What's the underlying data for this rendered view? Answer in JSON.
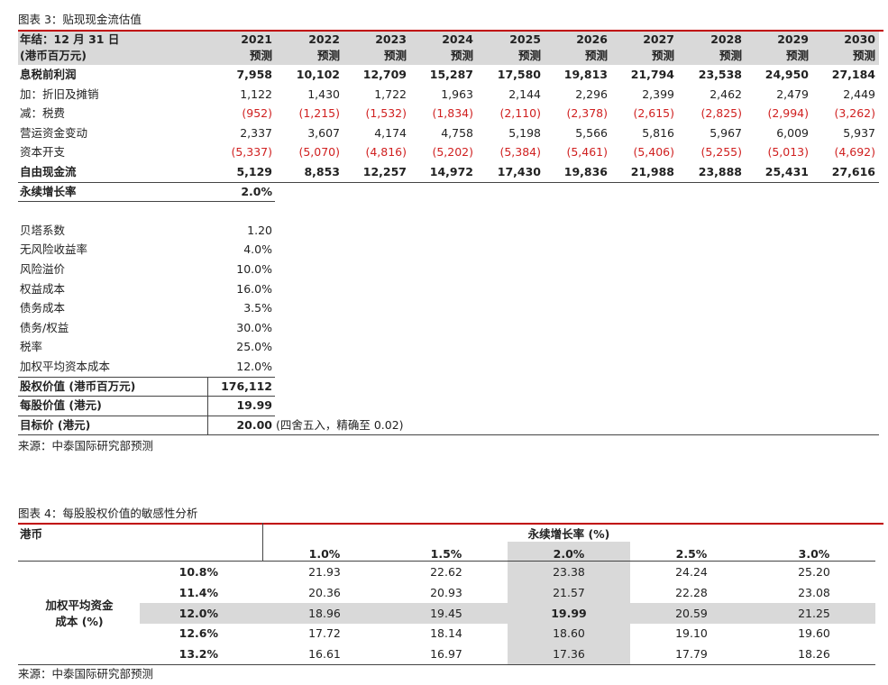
{
  "table1": {
    "title": "图表 3：贴现现金流估值",
    "header": {
      "label": [
        "年结：12 月 31 日",
        "(港币百万元)"
      ],
      "years": [
        "2021",
        "2022",
        "2023",
        "2024",
        "2025",
        "2026",
        "2027",
        "2028",
        "2029",
        "2030"
      ],
      "sublabel": "预测"
    },
    "rows": [
      {
        "label": "息税前利润",
        "bold": true,
        "values": [
          "7,958",
          "10,102",
          "12,709",
          "15,287",
          "17,580",
          "19,813",
          "21,794",
          "23,538",
          "24,950",
          "27,184"
        ]
      },
      {
        "label": "加：折旧及摊销",
        "values": [
          "1,122",
          "1,430",
          "1,722",
          "1,963",
          "2,144",
          "2,296",
          "2,399",
          "2,462",
          "2,479",
          "2,449"
        ]
      },
      {
        "label": "减：税费",
        "color": "#d02020",
        "values": [
          "(952)",
          "(1,215)",
          "(1,532)",
          "(1,834)",
          "(2,110)",
          "(2,378)",
          "(2,615)",
          "(2,825)",
          "(2,994)",
          "(3,262)"
        ]
      },
      {
        "label": "营运资金变动",
        "values": [
          "2,337",
          "3,607",
          "4,174",
          "4,758",
          "5,198",
          "5,566",
          "5,816",
          "5,967",
          "6,009",
          "5,937"
        ]
      },
      {
        "label": "资本开支",
        "color": "#d02020",
        "values": [
          "(5,337)",
          "(5,070)",
          "(4,816)",
          "(5,202)",
          "(5,384)",
          "(5,461)",
          "(5,406)",
          "(5,255)",
          "(5,013)",
          "(4,692)"
        ]
      },
      {
        "label": "自由现金流",
        "bold": true,
        "values": [
          "5,129",
          "8,853",
          "12,257",
          "14,972",
          "17,430",
          "19,836",
          "21,988",
          "23,888",
          "25,431",
          "27,616"
        ]
      },
      {
        "label": "永续增长率",
        "bold": true,
        "values": [
          "2.0%"
        ]
      }
    ],
    "assumptions": [
      {
        "label": "贝塔系数",
        "values": [
          "1.20"
        ]
      },
      {
        "label": "无风险收益率",
        "values": [
          "4.0%"
        ]
      },
      {
        "label": "风险溢价",
        "values": [
          "10.0%"
        ]
      },
      {
        "label": "权益成本",
        "values": [
          "16.0%"
        ]
      },
      {
        "label": "债务成本",
        "values": [
          "3.5%"
        ]
      },
      {
        "label": "债务/权益",
        "values": [
          "30.0%"
        ]
      },
      {
        "label": "税率",
        "values": [
          "25.0%"
        ]
      },
      {
        "label": "加权平均资本成本",
        "values": [
          "12.0%"
        ]
      }
    ],
    "results": [
      {
        "label": "股权价值 (港币百万元)",
        "bold": true,
        "values": [
          "176,112"
        ]
      },
      {
        "label": "每股价值 (港元)",
        "bold": true,
        "values": [
          "19.99"
        ]
      },
      {
        "label": "目标价 (港元)",
        "bold": true,
        "values": [
          "20.00"
        ],
        "note": "(四舍五入，精确至 0.02)"
      }
    ],
    "source": "来源：中泰国际研究部预测"
  },
  "table2": {
    "title": "图表 4：每股股权价值的敏感性分析",
    "corner": "港币",
    "column_title": "永续增长率 (%)",
    "columns": [
      "1.0%",
      "1.5%",
      "2.0%",
      "2.5%",
      "3.0%"
    ],
    "row_title": [
      "加权平均资金",
      "成本 (%)"
    ],
    "rows": [
      {
        "label": "10.8%",
        "values": [
          "21.93",
          "22.62",
          "23.38",
          "24.24",
          "25.20"
        ]
      },
      {
        "label": "11.4%",
        "values": [
          "20.36",
          "20.93",
          "21.57",
          "22.28",
          "23.08"
        ]
      },
      {
        "label": "12.0%",
        "values": [
          "18.96",
          "19.45",
          "19.99",
          "20.59",
          "21.25"
        ]
      },
      {
        "label": "12.6%",
        "values": [
          "17.72",
          "18.14",
          "18.60",
          "19.10",
          "19.60"
        ]
      },
      {
        "label": "13.2%",
        "values": [
          "16.61",
          "16.97",
          "17.36",
          "17.79",
          "18.26"
        ]
      }
    ],
    "highlight_row": 2,
    "highlight_column": 2,
    "source": "来源：中泰国际研究部预测"
  }
}
